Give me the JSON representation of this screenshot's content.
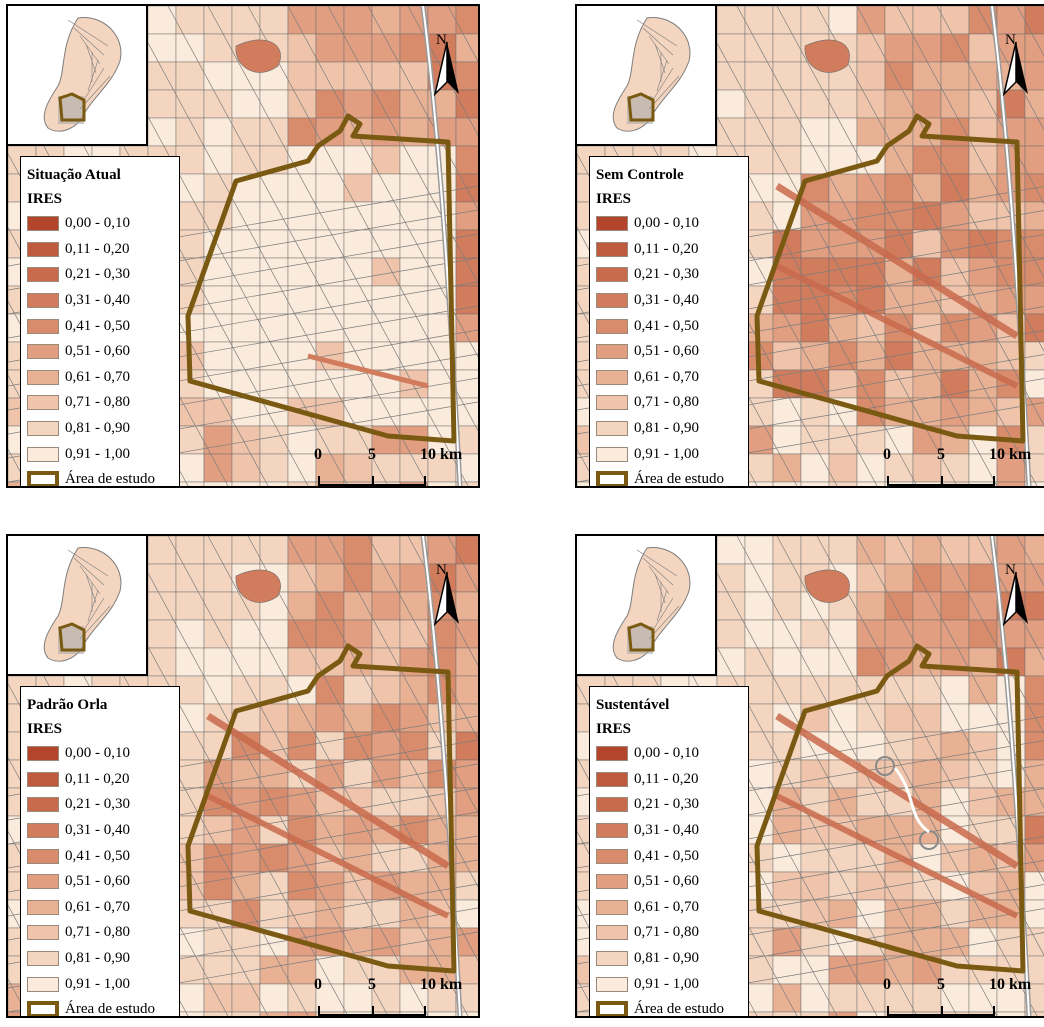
{
  "panels": [
    {
      "title": "Situação Atual",
      "pattern": "current"
    },
    {
      "title": "Sem Controle",
      "pattern": "uncontrolled"
    },
    {
      "title": "Padrão Orla",
      "pattern": "orla"
    },
    {
      "title": "Sustentável",
      "pattern": "sustainable"
    }
  ],
  "legend": {
    "heading": "IRES",
    "classes": [
      {
        "label": "0,00 - 0,10",
        "color": "#b3452c"
      },
      {
        "label": "0,11 - 0,20",
        "color": "#be5a3e"
      },
      {
        "label": "0,21 - 0,30",
        "color": "#c86a4c"
      },
      {
        "label": "0,31 - 0,40",
        "color": "#d17c5c"
      },
      {
        "label": "0,41 - 0,50",
        "color": "#d98c6c"
      },
      {
        "label": "0,51 - 0,60",
        "color": "#e19e80"
      },
      {
        "label": "0,61 - 0,70",
        "color": "#e8b194"
      },
      {
        "label": "0,71 - 0,80",
        "color": "#efc4aa"
      },
      {
        "label": "0,81 - 0,90",
        "color": "#f4d6c0"
      },
      {
        "label": "0,91 - 1,00",
        "color": "#faebdc"
      }
    ],
    "study_area_label": "Área de estudo",
    "study_area_color": "#7a5a12"
  },
  "scale": {
    "ticks": [
      "0",
      "5",
      "10 km"
    ]
  },
  "north_label": "N"
}
